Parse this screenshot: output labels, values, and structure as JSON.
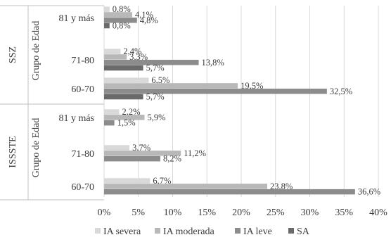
{
  "chart_data": {
    "type": "bar",
    "orientation": "horizontal",
    "grid": true,
    "legend_position": "bottom",
    "xlim": [
      0,
      40
    ],
    "x_ticks": [
      "0%",
      "5%",
      "10%",
      "15%",
      "20%",
      "25%",
      "30%",
      "35%",
      "40%"
    ],
    "groups": [
      {
        "name": "SSZ",
        "axis_title": "Grupo de Edad",
        "categories": [
          {
            "label": "81 y más",
            "values": [
              0.8,
              4.1,
              4.8,
              0.8
            ],
            "labels": [
              "0,8%",
              "4,1%",
              "4,8%",
              "0,8%"
            ]
          },
          {
            "label": "71-80",
            "values": [
              2.4,
              3.3,
              13.8,
              5.7
            ],
            "labels": [
              "2,4%",
              "3,3%",
              "13,8%",
              "5,7%"
            ]
          },
          {
            "label": "60-70",
            "values": [
              6.5,
              19.5,
              32.5,
              5.7
            ],
            "labels": [
              "6,5%",
              "19,5%",
              "32,5%",
              "5,7%"
            ]
          }
        ]
      },
      {
        "name": "ISSSTE",
        "axis_title": "Grupo de Edad",
        "categories": [
          {
            "label": "81 y más",
            "values": [
              2.2,
              5.9,
              1.5,
              null
            ],
            "labels": [
              "2,2%",
              "5,9%",
              "1,5%",
              null
            ]
          },
          {
            "label": "71-80",
            "values": [
              3.7,
              11.2,
              8.2,
              null
            ],
            "labels": [
              "3,7%",
              "11,2%",
              "8,2%",
              null
            ]
          },
          {
            "label": "60-70",
            "values": [
              6.7,
              23.8,
              36.6,
              null
            ],
            "labels": [
              "6,7%",
              "23,8%",
              "36,6%",
              null
            ]
          }
        ]
      }
    ],
    "series": [
      {
        "name": "IA severa",
        "color": "#d9d9d9"
      },
      {
        "name": "IA moderada",
        "color": "#b8b8b8"
      },
      {
        "name": "IA leve",
        "color": "#8c8c8c"
      },
      {
        "name": "SA",
        "color": "#6a6a6a"
      }
    ],
    "colors": {
      "grid": "#d9d9d9",
      "divider": "#bfbfbf",
      "text": "#3a3a3a"
    }
  }
}
